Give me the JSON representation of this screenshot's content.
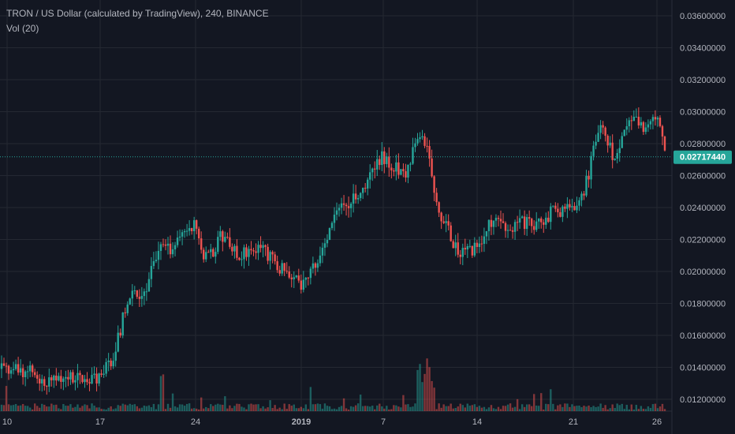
{
  "chart_data": {
    "type": "candlestick",
    "title": "TRON / US Dollar (calculated by TradingView), 240, BINANCE",
    "indicator": "Vol (20)",
    "current_price": "0.02717440",
    "y_axis": {
      "ticks": [
        "0.03600000",
        "0.03400000",
        "0.03200000",
        "0.03000000",
        "0.02800000",
        "0.02600000",
        "0.02400000",
        "0.02200000",
        "0.02000000",
        "0.01800000",
        "0.01600000",
        "0.01400000",
        "0.01200000"
      ],
      "range": [
        0.0112,
        0.0368
      ]
    },
    "x_axis": {
      "ticks": [
        "10",
        "17",
        "24",
        "2019",
        "7",
        "14",
        "21",
        "26"
      ]
    },
    "grid": true,
    "colors": {
      "background": "#131722",
      "up": "#26a69a",
      "down": "#ef5350",
      "grid": "#242832",
      "text": "#b2b5be",
      "price_tag": "#26a69a"
    },
    "price_path": [
      {
        "x": "10",
        "price": 0.0139
      },
      {
        "x": "17",
        "price": 0.0132
      },
      {
        "x": "24",
        "price": 0.0238
      },
      {
        "x": "2019",
        "price": 0.0193
      },
      {
        "x": "7",
        "price": 0.0272
      },
      {
        "x": "14",
        "price": 0.0212
      },
      {
        "x": "21",
        "price": 0.024
      },
      {
        "x": "26",
        "price": 0.0295
      },
      {
        "x": "",
        "price": 0.02717
      }
    ]
  }
}
